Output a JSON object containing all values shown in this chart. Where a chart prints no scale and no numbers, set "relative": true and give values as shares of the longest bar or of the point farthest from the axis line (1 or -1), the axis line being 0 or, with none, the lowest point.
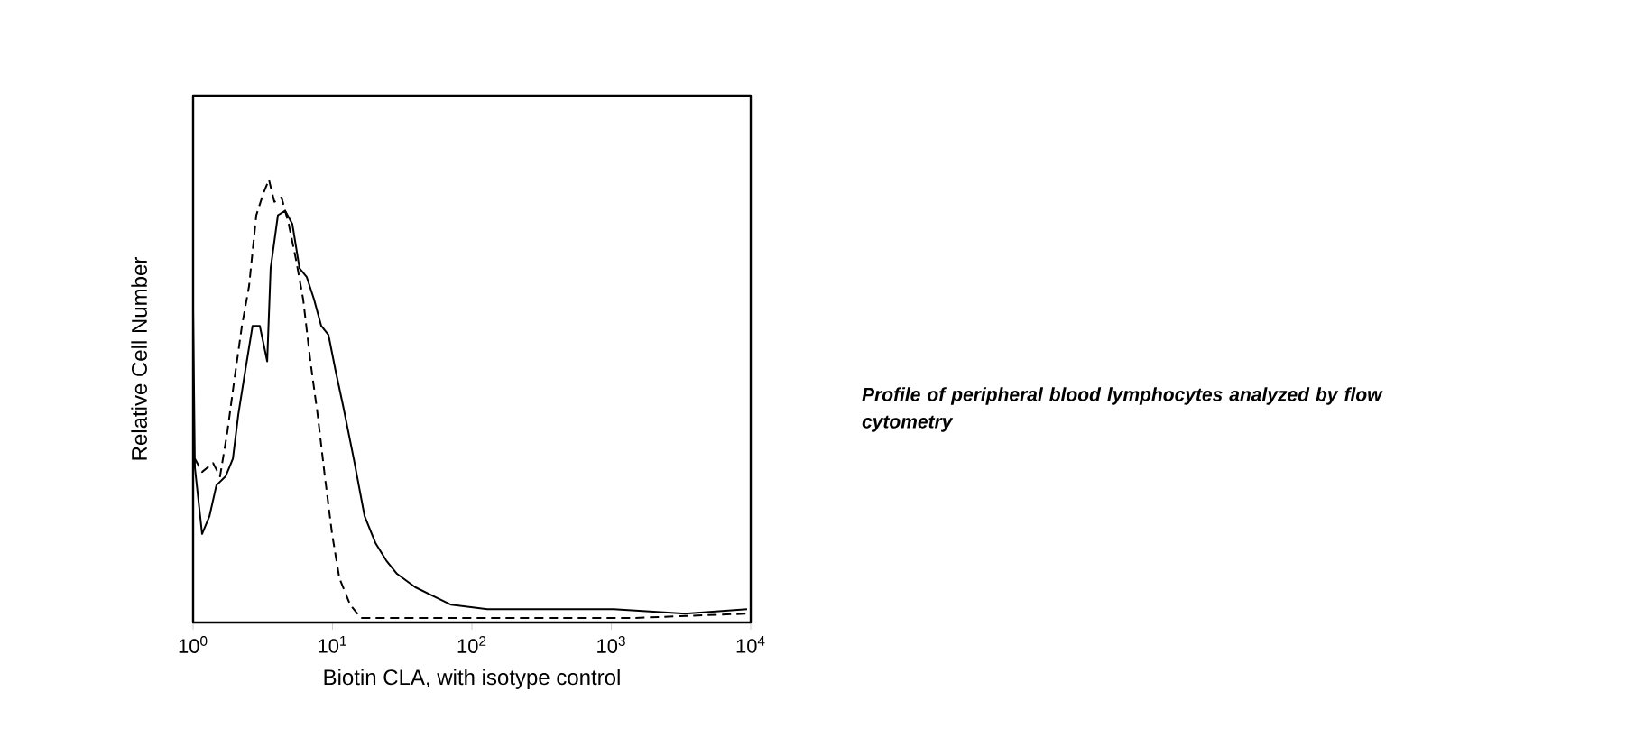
{
  "chart_data": {
    "type": "line",
    "xlabel": "Biotin CLA, with isotype control",
    "ylabel": "Relative Cell Number",
    "relative": true,
    "log": "x",
    "xlim": [
      1,
      10000
    ],
    "xticks": [
      {
        "value": 1,
        "label": "10$^{0}$"
      },
      {
        "value": 10,
        "label": "10$^{1}$"
      },
      {
        "value": 100,
        "label": "10$^{2}$"
      },
      {
        "value": 1000,
        "label": "10$^{3}$"
      },
      {
        "value": 10000,
        "label": "10$^{4}$"
      }
    ],
    "grid": false,
    "marker": "none",
    "series": [
      {
        "color": "#000000",
        "line_style": "solid",
        "x": [
          1.0,
          1.03,
          1.16,
          1.31,
          1.47,
          1.71,
          1.93,
          2.11,
          2.37,
          2.67,
          3.01,
          3.4,
          3.6,
          4.06,
          4.57,
          5.15,
          5.8,
          6.54,
          7.37,
          8.3,
          9.35,
          10.5,
          11.9,
          14.2,
          17.0,
          20.3,
          24.3,
          29.0,
          39.1,
          52.7,
          71.0,
          129,
          315,
          1040,
          3420,
          9420
        ],
        "values": [
          0.71,
          0.35,
          0.2,
          0.24,
          0.31,
          0.33,
          0.37,
          0.47,
          0.57,
          0.67,
          0.67,
          0.59,
          0.8,
          0.92,
          0.93,
          0.9,
          0.8,
          0.78,
          0.73,
          0.67,
          0.65,
          0.57,
          0.49,
          0.37,
          0.24,
          0.18,
          0.14,
          0.11,
          0.08,
          0.06,
          0.04,
          0.03,
          0.03,
          0.03,
          0.02,
          0.03
        ]
      },
      {
        "color": "#000000",
        "line_style": "dashed",
        "x": [
          1.03,
          1.16,
          1.39,
          1.56,
          1.76,
          1.98,
          2.24,
          2.52,
          2.84,
          3.2,
          3.5,
          3.83,
          4.31,
          4.85,
          5.47,
          6.16,
          6.94,
          7.82,
          8.81,
          9.93,
          11.2,
          13.4,
          16.0,
          29.0,
          95.7,
          315,
          1400,
          9420
        ],
        "values": [
          0.37,
          0.34,
          0.36,
          0.33,
          0.43,
          0.55,
          0.67,
          0.76,
          0.92,
          0.97,
          1,
          0.95,
          0.96,
          0.9,
          0.82,
          0.73,
          0.59,
          0.47,
          0.33,
          0.2,
          0.1,
          0.04,
          0.01,
          0.01,
          0.01,
          0.01,
          0.01,
          0.02
        ]
      }
    ],
    "annotations": [
      "Profile of peripheral blood lymphocytes analyzed by flow cytometry"
    ]
  }
}
